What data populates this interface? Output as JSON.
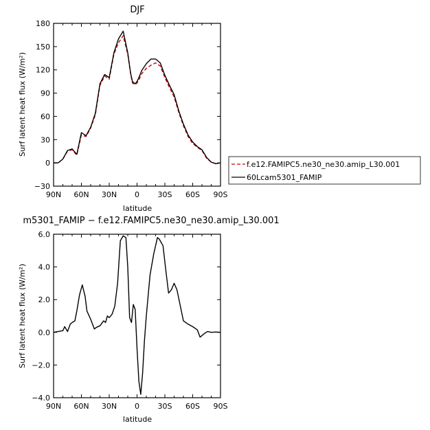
{
  "chart_data": [
    {
      "type": "line",
      "title": "DJF",
      "xlabel": "latitude",
      "ylabel": "Surf latent heat flux (W/m²)",
      "ylim": [
        -30,
        180
      ],
      "yticks": [
        "−30",
        "0",
        "30",
        "60",
        "90",
        "120",
        "150",
        "180"
      ],
      "yticks_values": [
        -30,
        0,
        30,
        60,
        90,
        120,
        150,
        180
      ],
      "xlim": [
        90,
        -90
      ],
      "xticks": [
        "90N",
        "60N",
        "30N",
        "0",
        "30S",
        "60S",
        "90S"
      ],
      "xticks_values": [
        90,
        60,
        30,
        0,
        -30,
        -60,
        -90
      ],
      "grid": false,
      "legend_position": "right",
      "x": [
        90,
        85,
        80,
        75,
        70,
        65,
        60,
        55,
        50,
        45,
        40,
        35,
        30,
        25,
        20,
        15,
        10,
        7,
        5,
        2,
        0,
        -2,
        -5,
        -10,
        -15,
        -20,
        -25,
        -30,
        -35,
        -40,
        -45,
        -50,
        -55,
        -60,
        -65,
        -70,
        -75,
        -80,
        -85,
        -90
      ],
      "series": [
        {
          "name": "f.e12.FAMIPC5.ne30_ne30.amip_L30.001",
          "color": "#cc0000",
          "dash": "dashed",
          "values": [
            0,
            0,
            5,
            15,
            17,
            10,
            36,
            34,
            45,
            62,
            100,
            112,
            108,
            140,
            155,
            164,
            140,
            115,
            103,
            101,
            103,
            107,
            115,
            122,
            126,
            129,
            125,
            110,
            97,
            85,
            65,
            48,
            34,
            25,
            20,
            16,
            6,
            1,
            -1,
            0
          ]
        },
        {
          "name": "60Lcam5301_FAMIP",
          "color": "#000000",
          "dash": "solid",
          "values": [
            0,
            0,
            5,
            16,
            18,
            11,
            39,
            35,
            46,
            64,
            102,
            114,
            110,
            142,
            160,
            170,
            142,
            116,
            105,
            102,
            105,
            110,
            119,
            128,
            134,
            134,
            129,
            113,
            100,
            88,
            67,
            50,
            36,
            27,
            21,
            17,
            7,
            1,
            -1,
            0
          ]
        }
      ]
    },
    {
      "type": "line",
      "title": "m5301_FAMIP − f.e12.FAMIPC5.ne30_ne30.amip_L30.001",
      "xlabel": "latitude",
      "ylabel": "Surf latent heat flux (W/m²)",
      "ylim": [
        -4.0,
        6.0
      ],
      "yticks": [
        "−4.0",
        "−2.0",
        "0.0",
        "2.0",
        "4.0",
        "6.0"
      ],
      "yticks_values": [
        -4,
        -2,
        0,
        2,
        4,
        6
      ],
      "xlim": [
        90,
        -90
      ],
      "xticks": [
        "90N",
        "60N",
        "30N",
        "0",
        "30S",
        "60S",
        "90S"
      ],
      "xticks_values": [
        90,
        60,
        30,
        0,
        -30,
        -60,
        -90
      ],
      "grid": false,
      "x": [
        90,
        85,
        80,
        78,
        75,
        72,
        70,
        67,
        65,
        62,
        59,
        56,
        54,
        50,
        46,
        44,
        40,
        36,
        34,
        32,
        30,
        27,
        24,
        21,
        18,
        15,
        12,
        10,
        8,
        6,
        4,
        2,
        0,
        -2,
        -4,
        -6,
        -8,
        -10,
        -14,
        -18,
        -22,
        -24,
        -28,
        -31,
        -34,
        -37,
        -40,
        -43,
        -46,
        -50,
        -55,
        -60,
        -65,
        -68,
        -72,
        -76,
        -80,
        -85,
        -90
      ],
      "series": [
        {
          "name": "",
          "color": "#000000",
          "dash": "solid",
          "values": [
            0,
            0.05,
            0.1,
            0.35,
            0.05,
            0.5,
            0.6,
            0.7,
            1.3,
            2.3,
            2.9,
            2.2,
            1.3,
            0.8,
            0.2,
            0.3,
            0.4,
            0.7,
            0.6,
            1.0,
            0.9,
            1.1,
            1.6,
            3.0,
            5.6,
            5.9,
            5.8,
            4.0,
            0.9,
            0.6,
            1.7,
            1.4,
            -1.0,
            -3.0,
            -3.8,
            -2.5,
            -0.5,
            1.0,
            3.5,
            4.8,
            5.8,
            5.7,
            5.3,
            3.8,
            2.4,
            2.6,
            3.0,
            2.6,
            1.8,
            0.7,
            0.5,
            0.35,
            0.15,
            -0.3,
            -0.1,
            0.05,
            0.0,
            0.02,
            0
          ]
        }
      ]
    }
  ]
}
